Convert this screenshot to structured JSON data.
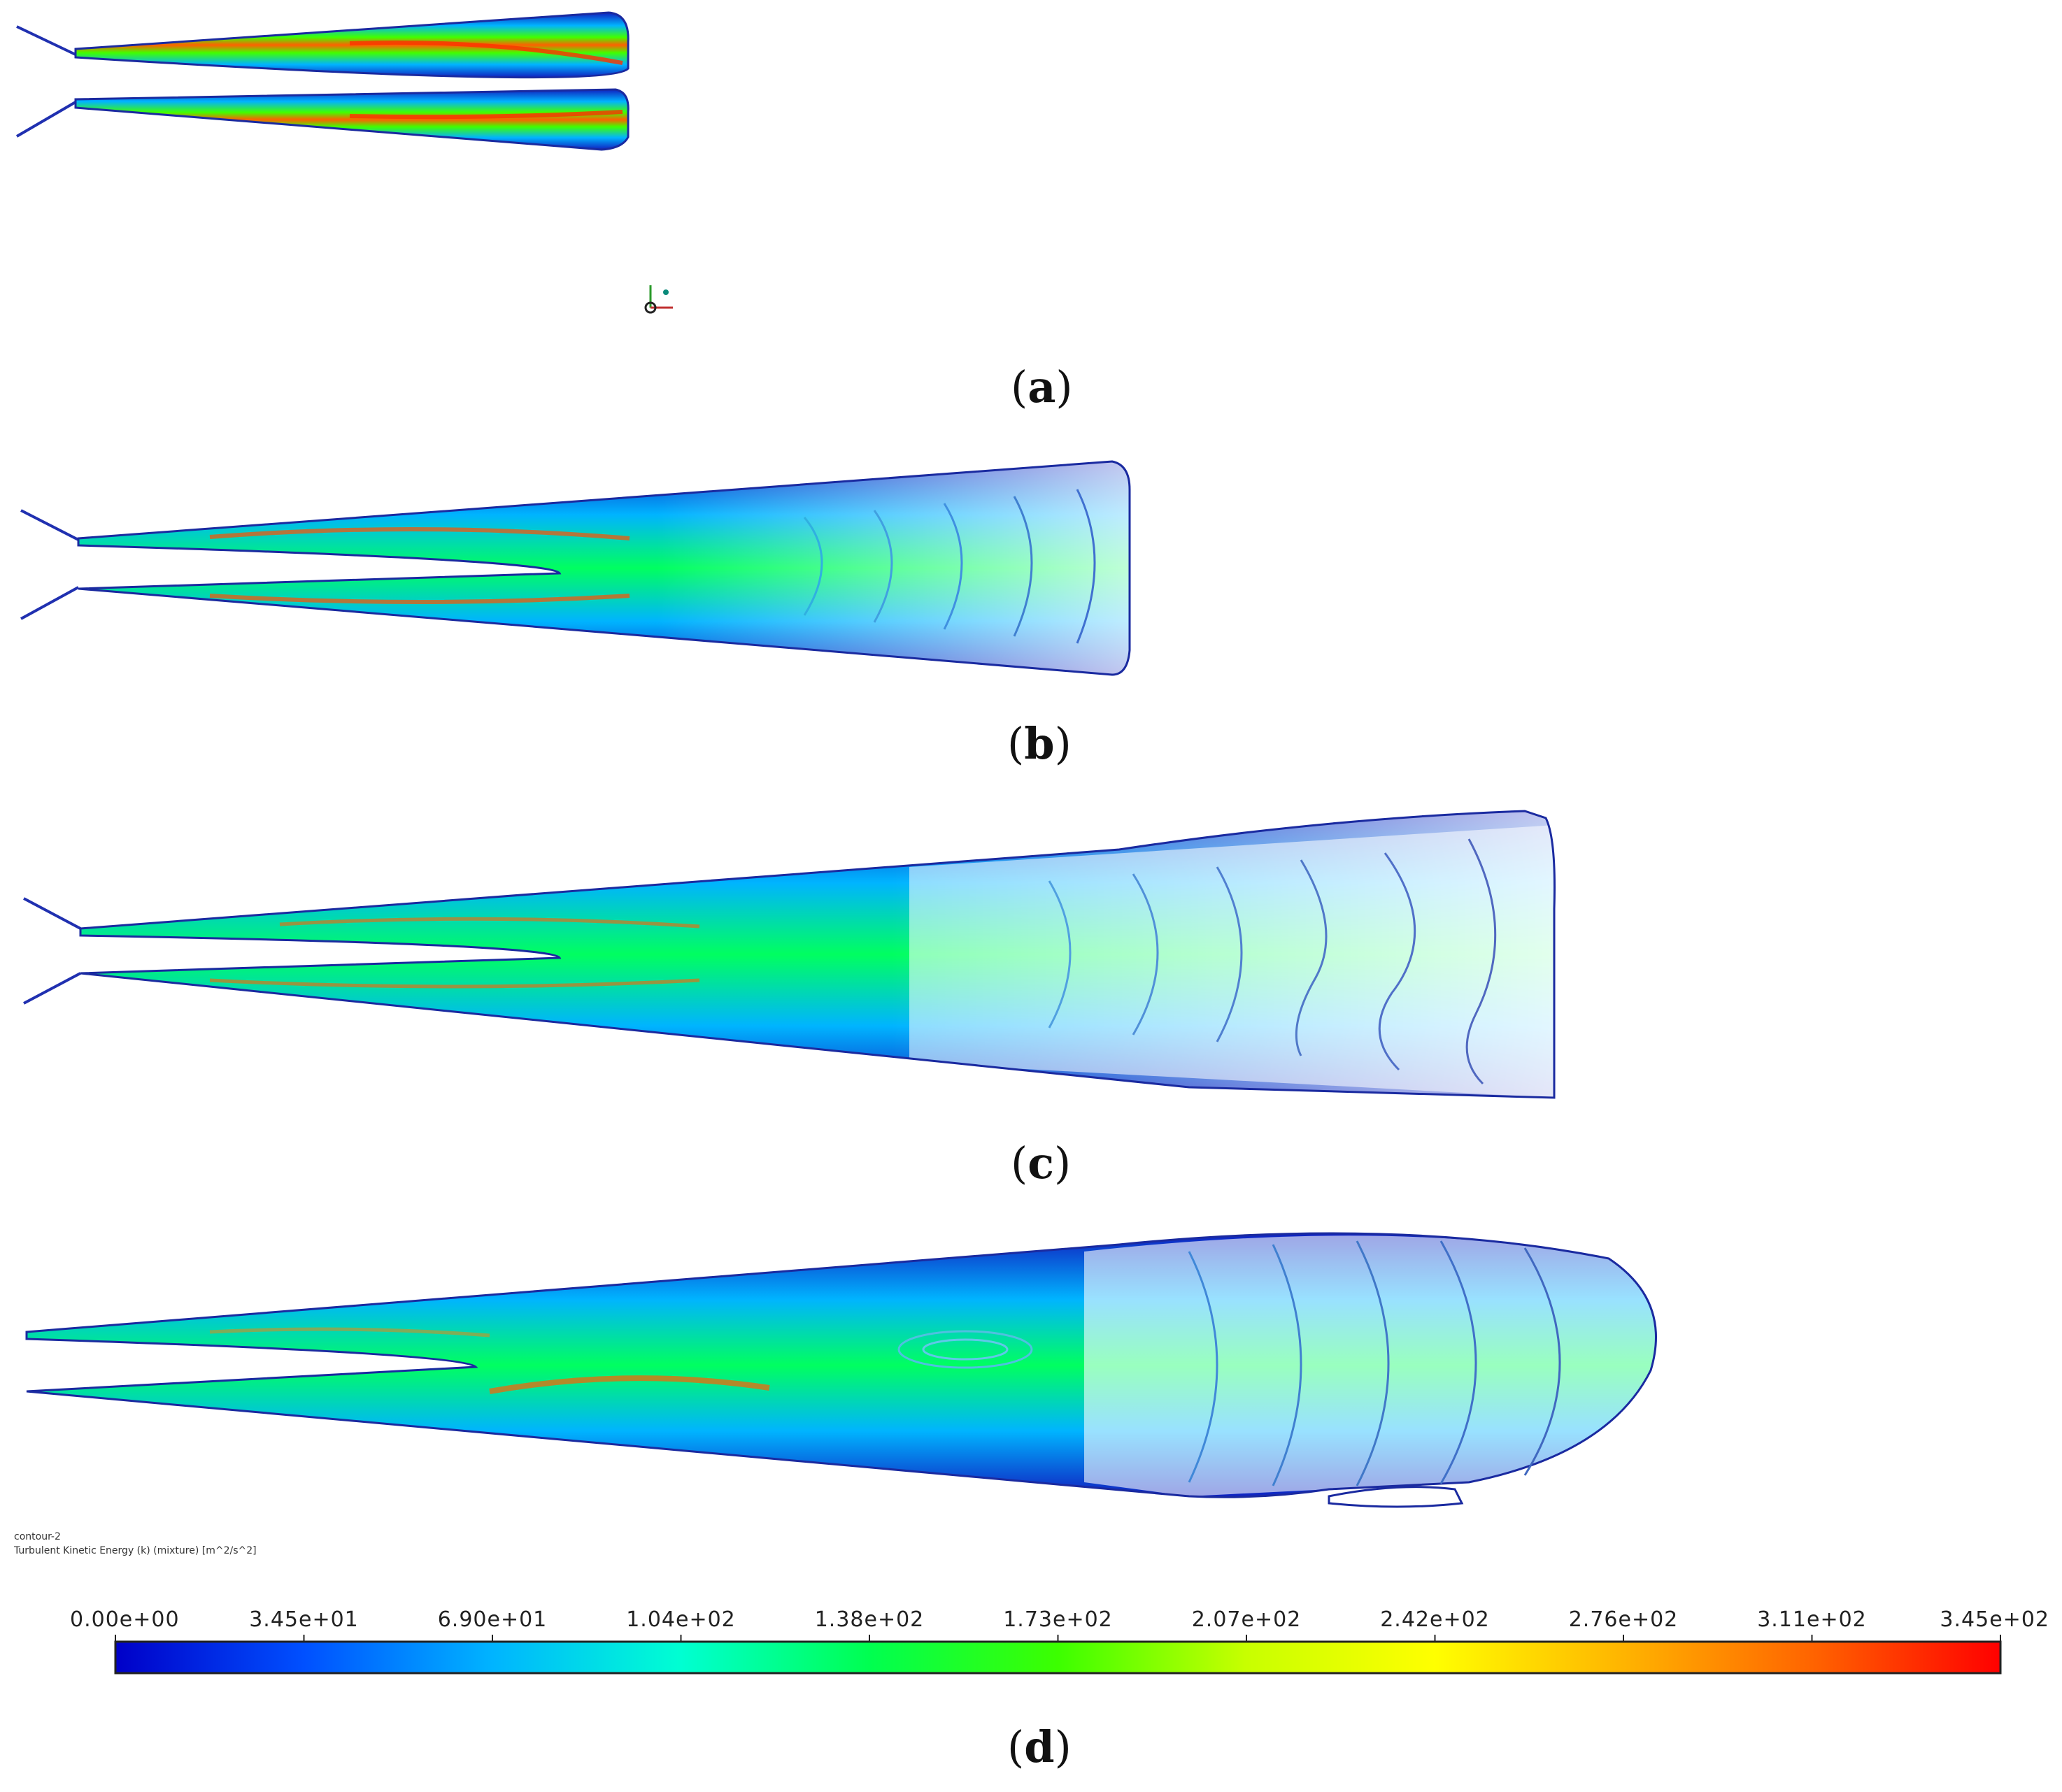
{
  "panels": [
    {
      "id": "a",
      "label_open": "(",
      "letter": "a",
      "label_close": ")"
    },
    {
      "id": "b",
      "label_open": "(",
      "letter": "b",
      "label_close": ")"
    },
    {
      "id": "c",
      "label_open": "(",
      "letter": "c",
      "label_close": ")"
    },
    {
      "id": "d",
      "label_open": "(",
      "letter": "d",
      "label_close": ")"
    }
  ],
  "contour_info": {
    "name": "contour-2",
    "quantity": "Turbulent Kinetic Energy (k) (mixture) [m^2/s^2]"
  },
  "colorbar": {
    "ticks": [
      "0.00e+00",
      "3.45e+01",
      "6.90e+01",
      "1.04e+02",
      "1.38e+02",
      "1.73e+02",
      "2.07e+02",
      "2.42e+02",
      "2.76e+02",
      "3.11e+02",
      "3.45e+02"
    ],
    "min": 0,
    "max": 345,
    "colors": [
      "#0000c8",
      "#0050ff",
      "#00b4ff",
      "#00ffd2",
      "#00ff50",
      "#3cff00",
      "#c8ff00",
      "#ffff00",
      "#ffb400",
      "#ff6400",
      "#ff0000"
    ]
  }
}
